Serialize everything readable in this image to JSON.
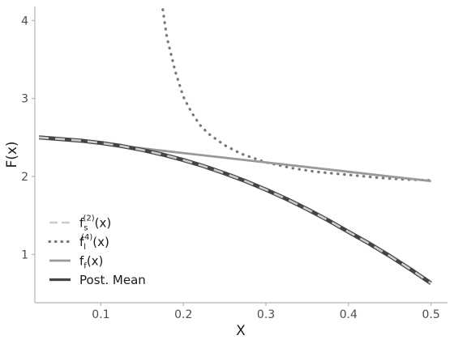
{
  "chart_data": {
    "type": "line",
    "title": "",
    "xlabel": "X",
    "ylabel": "F(x)",
    "xlim": [
      0.02,
      0.52
    ],
    "ylim": [
      0.38,
      4.18
    ],
    "x_ticks": [
      0.1,
      0.2,
      0.3,
      0.4,
      0.5
    ],
    "x_tick_labels": [
      "0.1",
      "0.2",
      "0.3",
      "0.4",
      "0.5"
    ],
    "y_ticks": [
      1,
      2,
      3,
      4
    ],
    "y_tick_labels": [
      "1",
      "2",
      "3",
      "4"
    ],
    "grid": false,
    "legend_position": "bottom-left",
    "legend_order": [
      "post_mean",
      "f_t",
      "f_l4",
      "f_s2"
    ],
    "series": [
      {
        "id": "f_l4",
        "legend": {
          "base": "f",
          "sub": "l",
          "sup": "(4)",
          "arg": "(x)"
        },
        "color": "#777777",
        "style": "dotted",
        "x": [
          0.175,
          0.18,
          0.19,
          0.2,
          0.21,
          0.22,
          0.23,
          0.25,
          0.27,
          0.3,
          0.33,
          0.36,
          0.4,
          0.44,
          0.47,
          0.5
        ],
        "y": [
          4.14,
          3.78,
          3.35,
          3.02,
          2.82,
          2.66,
          2.55,
          2.4,
          2.29,
          2.18,
          2.11,
          2.06,
          2.02,
          1.98,
          1.96,
          1.95
        ]
      },
      {
        "id": "f_t",
        "legend": {
          "base": "f",
          "sub": "f",
          "sup": "",
          "arg": "(x)"
        },
        "color": "#999999",
        "style": "solid",
        "x": [
          0.025,
          0.05,
          0.1,
          0.15,
          0.2,
          0.25,
          0.3,
          0.35,
          0.4,
          0.45,
          0.5
        ],
        "y": [
          2.5,
          2.48,
          2.42,
          2.36,
          2.3,
          2.24,
          2.18,
          2.12,
          2.06,
          2.0,
          1.94
        ]
      },
      {
        "id": "post_mean",
        "legend": {
          "base": "Post. Mean",
          "sub": "",
          "sup": "",
          "arg": ""
        },
        "color": "#444444",
        "style": "solid-thick",
        "x": [
          0.025,
          0.05,
          0.075,
          0.1,
          0.125,
          0.15,
          0.175,
          0.2,
          0.225,
          0.25,
          0.275,
          0.3,
          0.325,
          0.35,
          0.375,
          0.4,
          0.425,
          0.45,
          0.475,
          0.5
        ],
        "y": [
          2.5,
          2.48,
          2.46,
          2.43,
          2.39,
          2.34,
          2.28,
          2.21,
          2.13,
          2.04,
          1.94,
          1.83,
          1.71,
          1.58,
          1.44,
          1.29,
          1.14,
          0.98,
          0.81,
          0.63
        ]
      },
      {
        "id": "f_s2",
        "legend": {
          "base": "f",
          "sub": "s",
          "sup": "(2)",
          "arg": "(x)"
        },
        "color": "#cccccc",
        "style": "dashed",
        "x": [
          0.025,
          0.05,
          0.075,
          0.1,
          0.125,
          0.15,
          0.175,
          0.2,
          0.225,
          0.25,
          0.275,
          0.3,
          0.325,
          0.35,
          0.375,
          0.4,
          0.425,
          0.45,
          0.475,
          0.5
        ],
        "y": [
          2.5,
          2.48,
          2.46,
          2.43,
          2.39,
          2.34,
          2.28,
          2.21,
          2.13,
          2.04,
          1.94,
          1.83,
          1.71,
          1.58,
          1.44,
          1.29,
          1.14,
          0.98,
          0.81,
          0.63
        ]
      }
    ]
  }
}
